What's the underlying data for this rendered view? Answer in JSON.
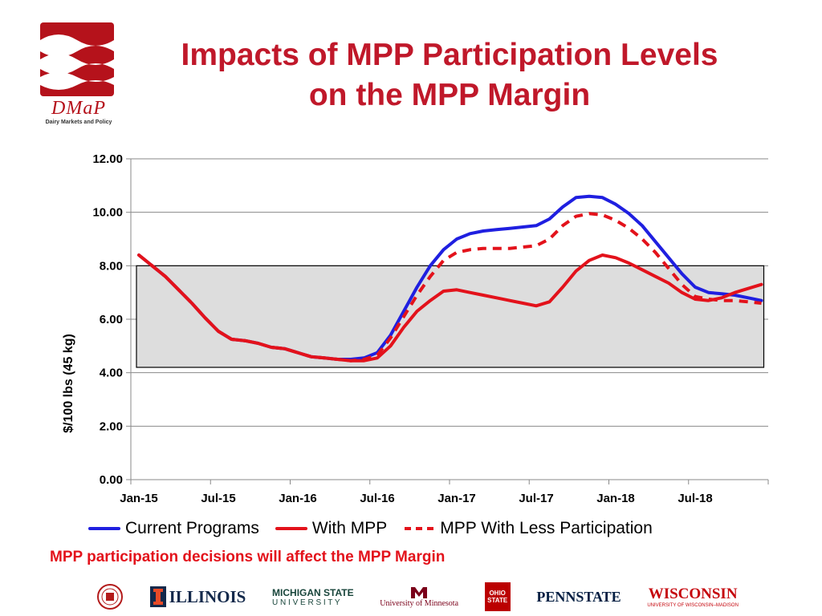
{
  "title_line1": "Impacts of MPP Participation Levels",
  "title_line2": "on the MPP Margin",
  "logo": {
    "word": "DMaP",
    "sub": "Dairy Markets and Policy"
  },
  "note": "MPP participation decisions will affect the MPP Margin",
  "footer": {
    "illinois": "ILLINOIS",
    "msu_line1": "MICHIGAN STATE",
    "msu_line2": "U N I V E R S I T Y",
    "minnesota": "University of Minnesota",
    "ohio": "OHIO STATE",
    "pennstate": "PENNSTATE",
    "wisconsin": "WISCONSIN",
    "wisconsin_sub": "UNIVERSITY OF WISCONSIN–MADISON"
  },
  "colors": {
    "title": "#c0182a",
    "current": "#1f1fe0",
    "mpp": "#e3121b",
    "band_fill": "#dddddd"
  },
  "chart_data": {
    "type": "line",
    "ylabel": "$/100 lbs (45 kg)",
    "ylim": [
      0,
      12
    ],
    "yticks": [
      "0.00",
      "2.00",
      "4.00",
      "6.00",
      "8.00",
      "10.00",
      "12.00"
    ],
    "xtick_labels": [
      "Jan-15",
      "Jul-15",
      "Jan-16",
      "Jul-16",
      "Jan-17",
      "Jul-17",
      "Jan-18",
      "Jul-18"
    ],
    "xtick_index": [
      0,
      6,
      12,
      18,
      24,
      30,
      36,
      42
    ],
    "x": [
      "Jan-15",
      "Feb-15",
      "Mar-15",
      "Apr-15",
      "May-15",
      "Jun-15",
      "Jul-15",
      "Aug-15",
      "Sep-15",
      "Oct-15",
      "Nov-15",
      "Dec-15",
      "Jan-16",
      "Feb-16",
      "Mar-16",
      "Apr-16",
      "May-16",
      "Jun-16",
      "Jul-16",
      "Aug-16",
      "Sep-16",
      "Oct-16",
      "Nov-16",
      "Dec-16",
      "Jan-17",
      "Feb-17",
      "Mar-17",
      "Apr-17",
      "May-17",
      "Jun-17",
      "Jul-17",
      "Aug-17",
      "Sep-17",
      "Oct-17",
      "Nov-17",
      "Dec-17",
      "Jan-18",
      "Feb-18",
      "Mar-18",
      "Apr-18",
      "May-18",
      "Jun-18",
      "Jul-18",
      "Aug-18",
      "Sep-18",
      "Oct-18",
      "Nov-18",
      "Dec-18"
    ],
    "band": {
      "y0": 4.2,
      "y1": 8.0,
      "fill": "#dddddd"
    },
    "grid": true,
    "legend": "bottom",
    "series": [
      {
        "name": "Current Programs",
        "color": "#1f1fe0",
        "dash": "solid",
        "values": [
          8.4,
          8.0,
          7.6,
          7.1,
          6.6,
          6.05,
          5.55,
          5.25,
          5.2,
          5.1,
          4.95,
          4.9,
          4.75,
          4.6,
          4.55,
          4.5,
          4.5,
          4.55,
          4.75,
          5.4,
          6.3,
          7.2,
          8.0,
          8.6,
          9.0,
          9.2,
          9.3,
          9.35,
          9.4,
          9.45,
          9.5,
          9.75,
          10.2,
          10.55,
          10.6,
          10.55,
          10.3,
          9.95,
          9.5,
          8.9,
          8.3,
          7.7,
          7.2,
          7.0,
          6.95,
          6.9,
          6.8,
          6.7
        ]
      },
      {
        "name": "With MPP",
        "color": "#e3121b",
        "dash": "solid",
        "values": [
          8.4,
          8.0,
          7.6,
          7.1,
          6.6,
          6.05,
          5.55,
          5.25,
          5.2,
          5.1,
          4.95,
          4.9,
          4.75,
          4.6,
          4.55,
          4.5,
          4.45,
          4.45,
          4.55,
          5.0,
          5.7,
          6.3,
          6.7,
          7.05,
          7.1,
          7.0,
          6.9,
          6.8,
          6.7,
          6.6,
          6.5,
          6.65,
          7.2,
          7.8,
          8.2,
          8.4,
          8.3,
          8.1,
          7.85,
          7.6,
          7.35,
          7.0,
          6.75,
          6.7,
          6.8,
          7.0,
          7.15,
          7.3
        ]
      },
      {
        "name": "MPP With Less Participation",
        "color": "#e3121b",
        "dash": "dashed",
        "values": [
          8.4,
          8.0,
          7.6,
          7.1,
          6.6,
          6.05,
          5.55,
          5.25,
          5.2,
          5.1,
          4.95,
          4.9,
          4.75,
          4.6,
          4.55,
          4.5,
          4.45,
          4.5,
          4.65,
          5.3,
          6.1,
          6.9,
          7.6,
          8.2,
          8.5,
          8.6,
          8.65,
          8.65,
          8.65,
          8.7,
          8.75,
          9.0,
          9.5,
          9.85,
          9.95,
          9.9,
          9.7,
          9.4,
          9.0,
          8.5,
          7.9,
          7.3,
          6.85,
          6.75,
          6.7,
          6.7,
          6.65,
          6.6
        ]
      }
    ]
  }
}
